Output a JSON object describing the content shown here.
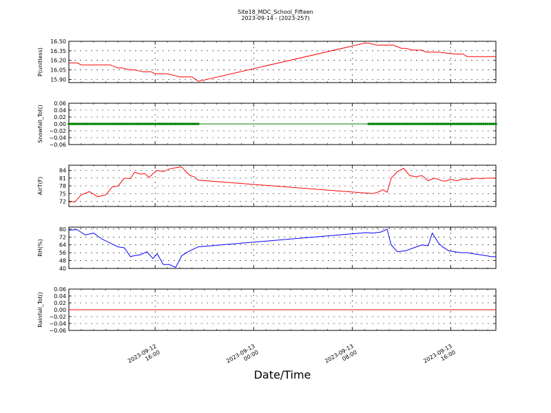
{
  "title": "Site18_MDC_School_Fifteen",
  "subtitle": "2023-09-14 - (2023-257)",
  "xlabel": "Date/Time",
  "x_ticks": [
    {
      "value": "2023-09-12 16:00",
      "line1": "2023-09-12",
      "line2": "16:00"
    },
    {
      "value": "2023-09-13 00:00",
      "line1": "2023-09-13",
      "line2": "00:00"
    },
    {
      "value": "2023-09-13 08:00",
      "line1": "2023-09-13",
      "line2": "08:00"
    },
    {
      "value": "2023-09-13 16:00",
      "line1": "2023-09-13",
      "line2": "16:00"
    }
  ],
  "colors": {
    "p": "#ff0000",
    "snow": "#008000",
    "airt": "#ff0000",
    "rh": "#0000ff",
    "rain": "#ff0000"
  },
  "chart_data": [
    {
      "type": "line",
      "ylabel": "P(unitless)",
      "ylim": [
        15.85,
        16.5
      ],
      "yticks": [
        "16.50",
        "16.35",
        "16.20",
        "16.05",
        "15.90"
      ],
      "grid": true,
      "x_range": [
        "2023-09-12 09:00",
        "2023-09-13 19:40"
      ],
      "series": [
        {
          "color": "#ff0000",
          "x": [
            "2023-09-12 09:00",
            "2023-09-12 09:40",
            "2023-09-12 10:00",
            "2023-09-12 11:00",
            "2023-09-12 12:00",
            "2023-09-12 12:20",
            "2023-09-12 13:00",
            "2023-09-12 13:20",
            "2023-09-12 14:00",
            "2023-09-12 14:20",
            "2023-09-12 15:00",
            "2023-09-12 15:40",
            "2023-09-12 16:00",
            "2023-09-12 16:20",
            "2023-09-12 17:00",
            "2023-09-12 18:00",
            "2023-09-12 18:20",
            "2023-09-12 18:40",
            "2023-09-12 19:00",
            "2023-09-12 19:30",
            "2023-09-13 09:00",
            "2023-09-13 09:20",
            "2023-09-13 10:00",
            "2023-09-13 10:40",
            "2023-09-13 11:00",
            "2023-09-13 11:20",
            "2023-09-13 12:00",
            "2023-09-13 12:20",
            "2023-09-13 13:00",
            "2023-09-13 13:40",
            "2023-09-13 14:00",
            "2023-09-13 15:00",
            "2023-09-13 16:20",
            "2023-09-13 16:40",
            "2023-09-13 17:00",
            "2023-09-13 17:20",
            "2023-09-13 18:00",
            "2023-09-13 19:40"
          ],
          "y": [
            16.16,
            16.16,
            16.13,
            16.13,
            16.13,
            16.13,
            16.08,
            16.08,
            16.05,
            16.05,
            16.02,
            16.02,
            15.99,
            15.99,
            15.99,
            15.94,
            15.94,
            15.94,
            15.94,
            15.87,
            16.47,
            16.47,
            16.44,
            16.44,
            16.44,
            16.44,
            16.39,
            16.39,
            16.36,
            16.36,
            16.33,
            16.33,
            16.3,
            16.3,
            16.3,
            16.26,
            16.26,
            16.26
          ]
        }
      ]
    },
    {
      "type": "line",
      "ylabel": "Snowfall_Tot()",
      "ylim": [
        -0.06,
        0.06
      ],
      "yticks": [
        "0.06",
        "0.04",
        "0.02",
        "0.00",
        "−0.02",
        "−0.04",
        "−0.06"
      ],
      "grid": true,
      "x_range": [
        "2023-09-12 09:00",
        "2023-09-13 19:40"
      ],
      "series": [
        {
          "color": "#008000",
          "markers": "dots",
          "x": [
            "2023-09-12 09:00",
            "2023-09-13 19:40"
          ],
          "y": [
            0,
            0
          ],
          "marker_spans": [
            [
              "2023-09-12 09:00",
              "2023-09-12 19:30"
            ],
            [
              "2023-09-13 09:20",
              "2023-09-13 19:40"
            ]
          ]
        }
      ]
    },
    {
      "type": "line",
      "ylabel": "AirT(F)",
      "ylim": [
        70,
        86
      ],
      "yticks": [
        "84",
        "81",
        "78",
        "75",
        "72"
      ],
      "grid": true,
      "x_range": [
        "2023-09-12 09:00",
        "2023-09-13 19:40"
      ],
      "series": [
        {
          "color": "#ff0000",
          "x": [
            "2023-09-12 09:00",
            "2023-09-12 09:30",
            "2023-09-12 10:00",
            "2023-09-12 10:40",
            "2023-09-12 11:20",
            "2023-09-12 12:00",
            "2023-09-12 12:30",
            "2023-09-12 13:00",
            "2023-09-12 13:30",
            "2023-09-12 14:00",
            "2023-09-12 14:20",
            "2023-09-12 14:50",
            "2023-09-12 15:10",
            "2023-09-12 15:30",
            "2023-09-12 15:50",
            "2023-09-12 16:10",
            "2023-09-12 16:40",
            "2023-09-12 17:10",
            "2023-09-12 17:40",
            "2023-09-12 18:10",
            "2023-09-12 18:30",
            "2023-09-12 18:50",
            "2023-09-12 19:10",
            "2023-09-12 19:30",
            "2023-09-13 09:10",
            "2023-09-13 09:40",
            "2023-09-13 10:10",
            "2023-09-13 10:30",
            "2023-09-13 10:50",
            "2023-09-13 11:10",
            "2023-09-13 11:40",
            "2023-09-13 12:10",
            "2023-09-13 12:40",
            "2023-09-13 13:10",
            "2023-09-13 13:40",
            "2023-09-13 14:10",
            "2023-09-13 14:40",
            "2023-09-13 15:10",
            "2023-09-13 15:30",
            "2023-09-13 16:00",
            "2023-09-13 16:30",
            "2023-09-13 17:00",
            "2023-09-13 17:30",
            "2023-09-13 18:00",
            "2023-09-13 18:30",
            "2023-09-13 19:00",
            "2023-09-13 19:40"
          ],
          "y": [
            71.8,
            71.8,
            74.5,
            75.8,
            73.8,
            74.5,
            77.5,
            78.0,
            81.0,
            80.8,
            83.3,
            82.5,
            82.8,
            81.2,
            82.8,
            84.0,
            83.5,
            84.6,
            85.0,
            85.3,
            83.5,
            82.0,
            81.5,
            80.2,
            75.2,
            75.0,
            75.7,
            76.5,
            75.5,
            81.0,
            83.5,
            84.8,
            82.0,
            81.5,
            82.0,
            80.0,
            81.0,
            80.2,
            79.8,
            80.5,
            80.0,
            80.7,
            80.5,
            81.0,
            80.8,
            81.0,
            81.0
          ]
        }
      ]
    },
    {
      "type": "line",
      "ylabel": "RH(%)",
      "ylim": [
        40,
        82
      ],
      "yticks": [
        "80",
        "72",
        "64",
        "56",
        "48",
        "40"
      ],
      "grid": true,
      "x_range": [
        "2023-09-12 09:00",
        "2023-09-13 19:40"
      ],
      "series": [
        {
          "color": "#0000ff",
          "x": [
            "2023-09-12 09:00",
            "2023-09-12 09:40",
            "2023-09-12 10:20",
            "2023-09-12 11:00",
            "2023-09-12 11:40",
            "2023-09-12 12:20",
            "2023-09-12 13:00",
            "2023-09-12 13:30",
            "2023-09-12 14:00",
            "2023-09-12 14:20",
            "2023-09-12 14:50",
            "2023-09-12 15:20",
            "2023-09-12 15:50",
            "2023-09-12 16:10",
            "2023-09-12 16:40",
            "2023-09-12 17:10",
            "2023-09-12 17:40",
            "2023-09-12 18:10",
            "2023-09-12 18:40",
            "2023-09-12 19:10",
            "2023-09-12 19:30",
            "2023-09-13 09:10",
            "2023-09-13 09:40",
            "2023-09-13 10:20",
            "2023-09-13 10:50",
            "2023-09-13 11:10",
            "2023-09-13 11:40",
            "2023-09-13 12:20",
            "2023-09-13 13:00",
            "2023-09-13 13:40",
            "2023-09-13 14:10",
            "2023-09-13 14:30",
            "2023-09-13 15:00",
            "2023-09-13 15:20",
            "2023-09-13 15:50",
            "2023-09-13 16:20",
            "2023-09-13 16:50",
            "2023-09-13 17:20",
            "2023-09-13 17:50",
            "2023-09-13 18:20",
            "2023-09-13 18:50",
            "2023-09-13 19:20",
            "2023-09-13 19:40"
          ],
          "y": [
            79.0,
            79.5,
            74.0,
            76.0,
            70.0,
            66.0,
            62.0,
            61.0,
            52.0,
            53.0,
            54.0,
            57.0,
            50.0,
            55.0,
            44.0,
            44.0,
            41.0,
            53.0,
            57.0,
            60.0,
            62.0,
            76.5,
            76.0,
            77.0,
            80.0,
            64.0,
            57.0,
            58.0,
            61.0,
            64.0,
            63.0,
            76.0,
            66.0,
            62.0,
            58.0,
            57.0,
            56.0,
            56.0,
            55.0,
            54.0,
            53.0,
            52.0,
            52.0
          ]
        }
      ]
    },
    {
      "type": "line",
      "ylabel": "Rainfall_Tot()",
      "ylim": [
        -0.06,
        0.06
      ],
      "yticks": [
        "0.06",
        "0.04",
        "0.02",
        "0.00",
        "−0.02",
        "−0.04",
        "−0.06"
      ],
      "grid": true,
      "x_range": [
        "2023-09-12 09:00",
        "2023-09-13 19:40"
      ],
      "series": [
        {
          "color": "#ff0000",
          "x": [
            "2023-09-12 09:00",
            "2023-09-13 19:40"
          ],
          "y": [
            0,
            0
          ]
        }
      ]
    }
  ]
}
